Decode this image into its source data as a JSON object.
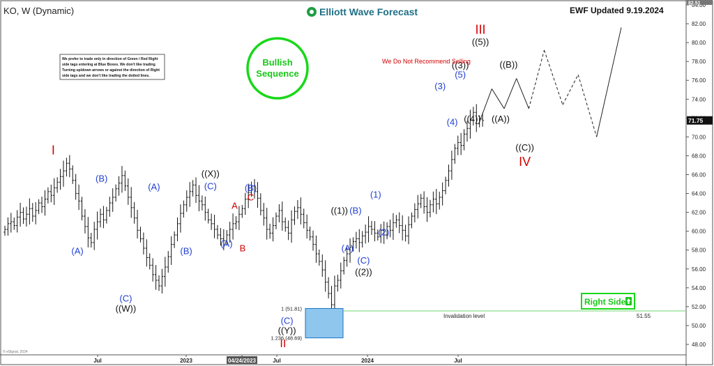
{
  "header": {
    "symbol_label": "KO, W (Dynamic)",
    "brand": "Elliott Wave Forecast",
    "update_label": "EWF Updated 9.19.2024"
  },
  "notes": {
    "disclaimer_lines": [
      "We prefer to trade only in direction of Green / Red Right",
      "side tags entering at Blue Boxes. We don't like trading",
      "Turning up/down arrows or against the direction of Right",
      "side tags and we don't like trading the dotted lines."
    ],
    "bullish_line1": "Bullish",
    "bullish_line2": "Sequence",
    "warning": "We Do Not Recommend Selling",
    "right_side": "Right Side",
    "copyright": "© eSignal, 2024"
  },
  "colors": {
    "blue_label": "#1f3fd6",
    "red_label": "#d40000",
    "black_label": "#111111",
    "green": "#18d818",
    "box_fill": "#8ec6ee",
    "box_stroke": "#1976c2",
    "invalidation_line": "#6fd66f",
    "bar_color": "#111111"
  },
  "chart_data": {
    "type": "ohlc",
    "ylim": [
      48,
      84
    ],
    "y_ticks": [
      48,
      50,
      52,
      54,
      56,
      58,
      60,
      62,
      64,
      66,
      68,
      70,
      72,
      74,
      76,
      78,
      80,
      82,
      84
    ],
    "x_labels": [
      "Jul",
      "2023",
      "04/24/2023",
      "Jul",
      "2024",
      "Jul"
    ],
    "price_tags": {
      "last": "71.75",
      "top": "82.51"
    },
    "levels": [
      {
        "label": "1 (51.81)",
        "value": 51.81
      },
      {
        "label": "1.236 (48.69)",
        "value": 48.69
      },
      {
        "label": "Invalidation level",
        "value": 51.55,
        "value_text": "51.55"
      }
    ],
    "weekly_closes": [
      60.2,
      60.8,
      61.0,
      60.6,
      61.5,
      62.0,
      61.3,
      61.8,
      62.4,
      61.6,
      62.2,
      63.0,
      62.6,
      63.4,
      64.2,
      63.8,
      64.6,
      65.2,
      65.8,
      66.4,
      67.2,
      66.6,
      65.4,
      64.0,
      63.2,
      61.6,
      60.5,
      59.3,
      58.8,
      60.2,
      61.0,
      61.8,
      61.2,
      62.2,
      63.0,
      63.6,
      64.5,
      65.1,
      65.9,
      64.8,
      63.6,
      62.5,
      61.4,
      60.1,
      59.2,
      58.2,
      57.2,
      56.4,
      55.4,
      54.8,
      54.2,
      55.2,
      56.2,
      57.3,
      58.6,
      59.6,
      60.8,
      61.9,
      62.8,
      63.6,
      64.2,
      64.9,
      63.8,
      63.2,
      62.8,
      62.0,
      61.2,
      60.8,
      60.2,
      59.6,
      59.2,
      59.0,
      59.6,
      60.2,
      60.8,
      61.0,
      61.8,
      62.4,
      63.4,
      64.1,
      64.8,
      64.2,
      63.5,
      62.2,
      61.4,
      60.2,
      59.8,
      60.6,
      61.6,
      62.2,
      61.0,
      60.4,
      59.8,
      61.2,
      62.1,
      62.5,
      61.8,
      60.9,
      60.1,
      59.4,
      58.6,
      57.6,
      56.8,
      55.9,
      54.6,
      53.4,
      52.2,
      54.2,
      54.8,
      55.8,
      56.9,
      57.6,
      58.3,
      58.9,
      59.2,
      58.8,
      59.5,
      59.9,
      60.5,
      60.2,
      59.8,
      59.4,
      60.1,
      59.6,
      60.5,
      60.1,
      60.9,
      61.2,
      60.6,
      60.1,
      59.5,
      60.7,
      61.6,
      62.3,
      62.9,
      63.5,
      62.6,
      62.0,
      62.8,
      63.4,
      62.9,
      63.6,
      64.3,
      65.4,
      66.4,
      67.6,
      68.8,
      69.4,
      69.1,
      70.3,
      70.9,
      71.8,
      72.6,
      71.4,
      71.9,
      71.75
    ],
    "wave_path": [
      {
        "week": 154,
        "price": 71.6
      },
      {
        "week": 158,
        "price": 75.1
      },
      {
        "week": 162,
        "price": 73.0
      },
      {
        "week": 166,
        "price": 76.2
      },
      {
        "week": 170,
        "price": 73.0
      },
      {
        "week": 175,
        "price": 79.2
      },
      {
        "week": 181,
        "price": 73.4
      },
      {
        "week": 186,
        "price": 76.6
      },
      {
        "week": 192,
        "price": 70.0
      },
      {
        "week": 200,
        "price": 81.6
      }
    ],
    "wave_path_dashed_segments": [
      4,
      5,
      6,
      7
    ],
    "wave_labels": [
      {
        "text": "I",
        "week": 12,
        "price": 68.6,
        "color": "red",
        "size": 18
      },
      {
        "text": "(A)",
        "week": 18,
        "price": 57.9,
        "color": "blue",
        "size": 13
      },
      {
        "text": "(B)",
        "week": 24,
        "price": 65.6,
        "color": "blue",
        "size": 13
      },
      {
        "text": "(C)",
        "week": 30,
        "price": 52.9,
        "color": "blue",
        "size": 13
      },
      {
        "text": "((W))",
        "week": 30,
        "price": 51.8,
        "color": "black",
        "size": 13
      },
      {
        "text": "(A)",
        "week": 37,
        "price": 64.7,
        "color": "blue",
        "size": 13
      },
      {
        "text": "(B)",
        "week": 45,
        "price": 57.9,
        "color": "blue",
        "size": 13
      },
      {
        "text": "((X))",
        "week": 51,
        "price": 66.1,
        "color": "black",
        "size": 13
      },
      {
        "text": "(C)",
        "week": 51,
        "price": 64.8,
        "color": "blue",
        "size": 13
      },
      {
        "text": "(A)",
        "week": 55,
        "price": 58.7,
        "color": "blue",
        "size": 13
      },
      {
        "text": "A",
        "week": 57,
        "price": 62.7,
        "color": "red",
        "size": 13
      },
      {
        "text": "B",
        "week": 59,
        "price": 58.2,
        "color": "red",
        "size": 13
      },
      {
        "text": "(B)",
        "week": 61,
        "price": 64.6,
        "color": "blue",
        "size": 13
      },
      {
        "text": "C",
        "week": 61,
        "price": 63.6,
        "color": "red",
        "size": 13
      },
      {
        "text": "(C)",
        "week": 70,
        "price": 50.5,
        "color": "blue",
        "size": 13
      },
      {
        "text": "((Y))",
        "week": 70,
        "price": 49.5,
        "color": "black",
        "size": 13
      },
      {
        "text": "II",
        "week": 69,
        "price": 48.1,
        "color": "red",
        "size": 16
      },
      {
        "text": "((1))",
        "week": 83,
        "price": 62.2,
        "color": "black",
        "size": 13
      },
      {
        "text": "(A)",
        "week": 85,
        "price": 58.2,
        "color": "blue",
        "size": 13
      },
      {
        "text": "(B)",
        "week": 87,
        "price": 62.2,
        "color": "blue",
        "size": 13
      },
      {
        "text": "(C)",
        "week": 89,
        "price": 56.9,
        "color": "blue",
        "size": 13
      },
      {
        "text": "((2))",
        "week": 89,
        "price": 55.7,
        "color": "black",
        "size": 13
      },
      {
        "text": "(1)",
        "week": 92,
        "price": 63.9,
        "color": "blue",
        "size": 13
      },
      {
        "text": "(2)",
        "week": 94,
        "price": 59.9,
        "color": "blue",
        "size": 13
      },
      {
        "text": "(3)",
        "week": 108,
        "price": 75.4,
        "color": "blue",
        "size": 13
      },
      {
        "text": "(4)",
        "week": 111,
        "price": 71.6,
        "color": "blue",
        "size": 13
      },
      {
        "text": "(5)",
        "week": 113,
        "price": 76.6,
        "color": "blue",
        "size": 13
      },
      {
        "text": "((3))",
        "week": 113,
        "price": 77.6,
        "color": "black",
        "size": 13
      },
      {
        "text": "((4))",
        "week": 116,
        "price": 71.9,
        "color": "black",
        "size": 13
      },
      {
        "text": "((5))",
        "week": 118,
        "price": 80.1,
        "color": "black",
        "size": 13
      },
      {
        "text": "III",
        "week": 118,
        "price": 81.4,
        "color": "red",
        "size": 18
      },
      {
        "text": "((A))",
        "week": 123,
        "price": 71.9,
        "color": "black",
        "size": 13
      },
      {
        "text": "((B))",
        "week": 125,
        "price": 77.7,
        "color": "black",
        "size": 13
      },
      {
        "text": "((C))",
        "week": 129,
        "price": 68.9,
        "color": "black",
        "size": 13
      },
      {
        "text": "IV",
        "week": 129,
        "price": 67.4,
        "color": "red",
        "size": 18
      }
    ]
  }
}
